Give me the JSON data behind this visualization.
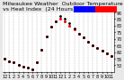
{
  "title": "Milwaukee Weather  Outdoor Temperature  vs Heat Index  (24 Hours)",
  "title_fontsize": 4.5,
  "bg_color": "#e8e8e8",
  "plot_bg_color": "#ffffff",
  "grid_color": "#aaaaaa",
  "temp_color": "#ff0000",
  "heat_color": "#000000",
  "legend_temp_color": "#0000ff",
  "legend_heat_color": "#ff0000",
  "hours": [
    0,
    1,
    2,
    3,
    4,
    5,
    6,
    7,
    8,
    9,
    10,
    11,
    12,
    13,
    14,
    15,
    16,
    17,
    18,
    19,
    20,
    21,
    22,
    23
  ],
  "temp": [
    55,
    53,
    52,
    50,
    49,
    48,
    47,
    52,
    62,
    72,
    79,
    83,
    85,
    83,
    80,
    77,
    74,
    71,
    68,
    65,
    63,
    61,
    59,
    57
  ],
  "heat_index": [
    55,
    53,
    52,
    50,
    49,
    48,
    47,
    52,
    62,
    72,
    79,
    83,
    87,
    85,
    82,
    78,
    74,
    71,
    68,
    65,
    63,
    61,
    59,
    57
  ],
  "ylim": [
    45,
    90
  ],
  "yticks": [
    50,
    55,
    60,
    65,
    70,
    75,
    80,
    85,
    90
  ],
  "ylabel_fontsize": 3.5,
  "xlabel_fontsize": 3.5,
  "xtick_labels": [
    "12",
    "1",
    "2",
    "3",
    "4",
    "5",
    "6",
    "7",
    "8",
    "9",
    "10",
    "11",
    "12",
    "1",
    "2",
    "3",
    "4",
    "5",
    "6",
    "7",
    "8",
    "9",
    "10",
    "11"
  ]
}
